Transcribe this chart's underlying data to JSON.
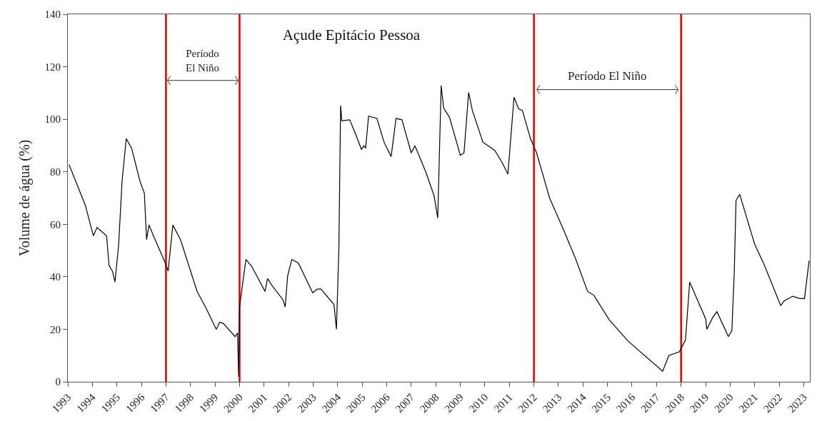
{
  "chart_data": {
    "type": "line",
    "title": "Açude Epitácio Pessoa",
    "ylabel": "Volume de água (%)",
    "x": [
      1993.05,
      1993.71,
      1994.04,
      1994.19,
      1994.58,
      1994.68,
      1994.82,
      1994.92,
      1995.07,
      1995.21,
      1995.38,
      1995.6,
      1995.94,
      1996.12,
      1996.21,
      1996.31,
      1996.53,
      1996.91,
      1997.09,
      1997.28,
      1997.59,
      1998.27,
      1998.66,
      1999.05,
      1999.19,
      1999.34,
      1999.82,
      1999.92,
      1999.96,
      2000.0,
      2000.26,
      2000.5,
      2001.04,
      2001.14,
      2001.33,
      2001.77,
      2001.86,
      2001.96,
      2002.13,
      2002.4,
      2002.98,
      2003.17,
      2003.32,
      2003.85,
      2003.95,
      2004.05,
      2004.12,
      2004.17,
      2004.49,
      2004.73,
      2004.97,
      2005.07,
      2005.14,
      2005.26,
      2005.6,
      2005.89,
      2006.18,
      2006.38,
      2006.62,
      2007.0,
      2007.15,
      2007.59,
      2007.93,
      2008.08,
      2008.22,
      2008.32,
      2008.56,
      2009.0,
      2009.15,
      2009.34,
      2009.49,
      2009.92,
      2010.41,
      2010.7,
      2010.94,
      2011.19,
      2011.38,
      2011.53,
      2011.86,
      2012.11,
      2012.64,
      2013.23,
      2013.71,
      2014.19,
      2014.44,
      2015.07,
      2015.85,
      2017.25,
      2017.5,
      2017.93,
      2018.18,
      2018.35,
      2019.0,
      2019.05,
      2019.29,
      2019.46,
      2019.93,
      2020.07,
      2020.17,
      2020.24,
      2020.39,
      2021.0,
      2021.38,
      2022.06,
      2022.2,
      2022.55,
      2022.84,
      2023.03,
      2023.22
    ],
    "series": [
      {
        "color": "#000000",
        "values": [
          82.7,
          67.3,
          55.6,
          58.8,
          55.6,
          44.3,
          42.1,
          38.0,
          52,
          76.4,
          92.6,
          89,
          76.4,
          71.8,
          54.2,
          59.7,
          54.7,
          46.6,
          42.2,
          59.7,
          54.2,
          34.4,
          27.6,
          20.0,
          22.7,
          22.2,
          17.2,
          18.6,
          2,
          28.5,
          46.6,
          43.9,
          34.4,
          39.3,
          36.6,
          31.2,
          28.5,
          40.3,
          46.6,
          45.2,
          33.9,
          35.3,
          35.3,
          29.4,
          20.0,
          51.1,
          105.2,
          99.4,
          99.8,
          94.4,
          88.5,
          89.9,
          89,
          101.2,
          100.3,
          91.3,
          85.8,
          100.3,
          99.8,
          87.2,
          89.9,
          80,
          70.9,
          62.4,
          112.9,
          104.3,
          100.7,
          86.3,
          87.2,
          110.2,
          103.4,
          91.3,
          88.1,
          83.6,
          79.1,
          108.4,
          103.9,
          103.4,
          92.6,
          87.2,
          70,
          57.4,
          46.6,
          34.4,
          33.0,
          23.6,
          15.4,
          4,
          10.0,
          11.4,
          15.9,
          38.0,
          24.0,
          20.0,
          24.5,
          26.7,
          17.2,
          19.5,
          42.1,
          69.1,
          71.4,
          52.4,
          44.8,
          29.0,
          30.8,
          32.6,
          31.7,
          31.7,
          46.1
        ]
      }
    ],
    "xlim": [
      1993,
      2023.25
    ],
    "xticks": [
      1993,
      1994,
      1995,
      1996,
      1997,
      1998,
      1999,
      2000,
      2001,
      2002,
      2003,
      2004,
      2005,
      2006,
      2007,
      2008,
      2009,
      2010,
      2011,
      2012,
      2013,
      2014,
      2015,
      2016,
      2017,
      2018,
      2019,
      2020,
      2021,
      2022,
      2023
    ],
    "ylim": [
      0,
      140
    ],
    "yticks": [
      0,
      20,
      40,
      60,
      80,
      100,
      120,
      140
    ],
    "ref_lines": [
      {
        "axis": "x",
        "value": 1997,
        "color": "#e00000"
      },
      {
        "axis": "x",
        "value": 2000,
        "color": "#e00000"
      },
      {
        "axis": "x",
        "value": 2012,
        "color": "#e00000"
      },
      {
        "axis": "x",
        "value": 2018,
        "color": "#e00000"
      }
    ],
    "annotations": [
      "Período\nEl Niño",
      "Período El Niño"
    ],
    "marker": "none",
    "line_style": "solid"
  }
}
